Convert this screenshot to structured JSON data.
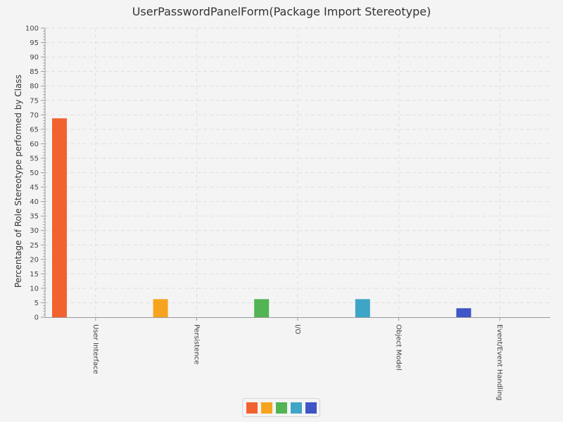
{
  "chart_data": {
    "type": "bar",
    "title": "UserPasswordPanelForm(Package Import Stereotype)",
    "xlabel": "",
    "ylabel": "Percentage of Role Stereotype performed by Class",
    "ylim": [
      0,
      100
    ],
    "y_major_step": 5,
    "grid": true,
    "legend_position": "bottom-center",
    "categories": [
      "User Interface",
      "Persistence",
      "I/O",
      "Object Model",
      "Event/Event Handling"
    ],
    "values": [
      68.8,
      6.25,
      6.25,
      6.25,
      3.1
    ],
    "colors": [
      "#f26230",
      "#f6a41f",
      "#52b452",
      "#3ea5c6",
      "#3e56c6"
    ]
  }
}
